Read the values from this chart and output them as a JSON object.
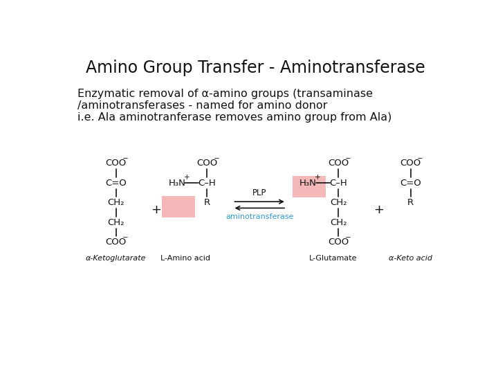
{
  "title": "Amino Group Transfer - Aminotransferase",
  "subtitle_lines": [
    "Enzymatic removal of α-amino groups (transaminase",
    "/aminotransferases - named for amino donor",
    "i.e. Ala aminotranferase removes amino group from Ala)"
  ],
  "bg_color": "#ffffff",
  "title_fontsize": 17,
  "subtitle_fontsize": 11.5,
  "highlight_color": "#f5b8b8",
  "arrow_label_top": "PLP",
  "arrow_label_bottom": "aminotransferase",
  "arrow_label_color_top": "#111111",
  "arrow_label_color_bottom": "#3399cc",
  "chem_fontsize": 9.5,
  "label_fontsize": 8,
  "bond_lw": 1.2
}
